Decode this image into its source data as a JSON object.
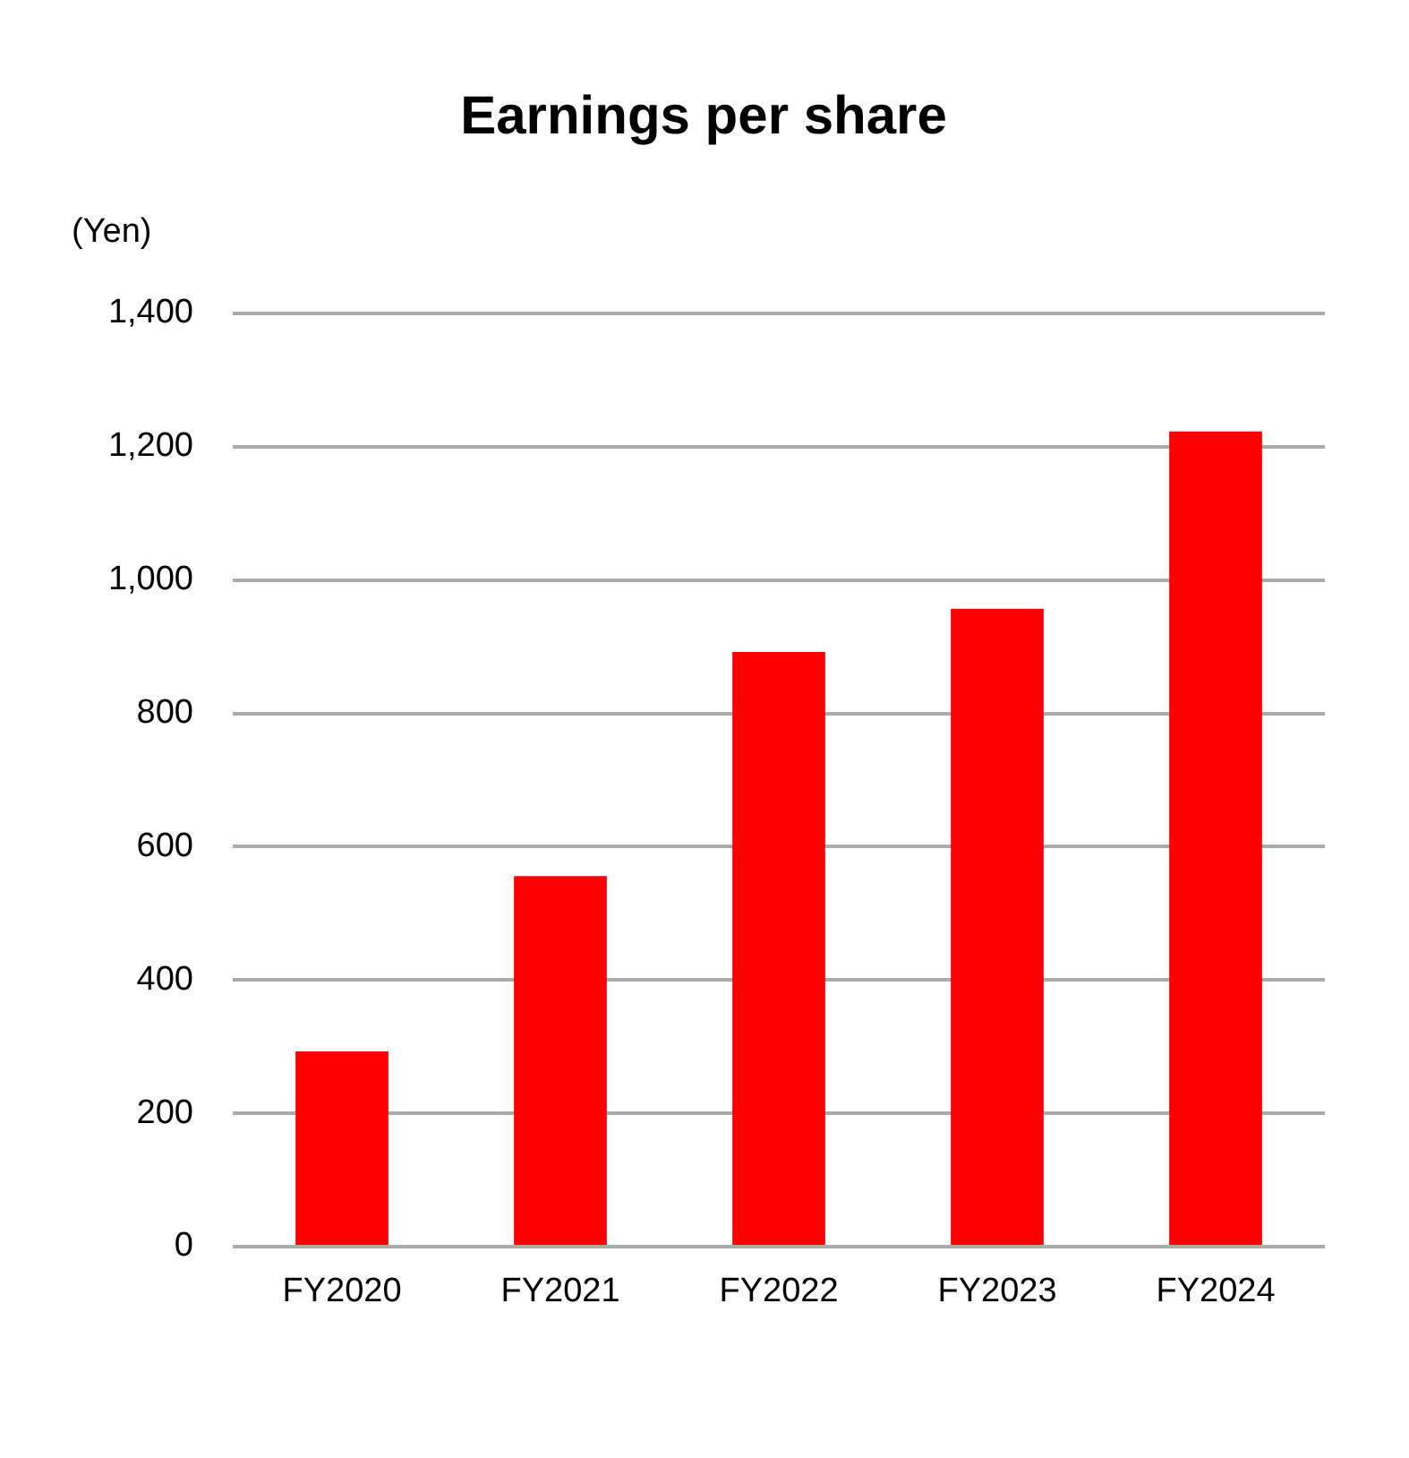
{
  "chart_data": {
    "type": "bar",
    "title": "Earnings per share",
    "ylabel": "(Yen)",
    "categories": [
      "FY2020",
      "FY2021",
      "FY2022",
      "FY2023",
      "FY2024"
    ],
    "values": [
      293,
      556,
      892,
      957,
      1223
    ],
    "color": "#ff0000",
    "ylim": [
      0,
      1400
    ],
    "yticks": [
      0,
      200,
      400,
      600,
      800,
      {
        "value": 1000,
        "label": "1,000"
      },
      {
        "value": 1200,
        "label": "1,200"
      },
      {
        "value": 1400,
        "label": "1,400"
      }
    ],
    "grid": "y"
  }
}
